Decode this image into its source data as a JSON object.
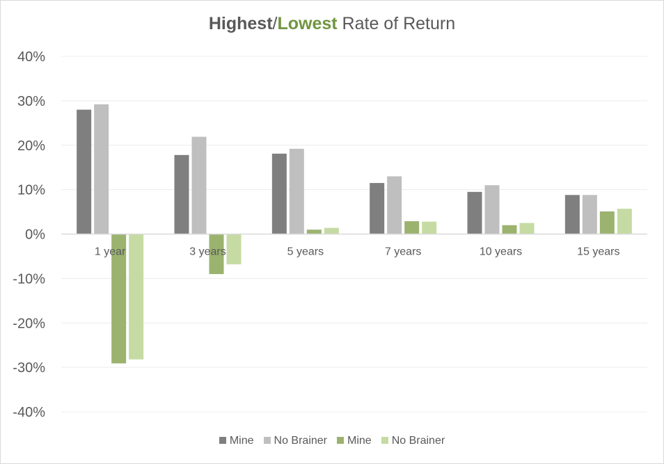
{
  "chart_data": {
    "type": "bar",
    "title": "Highest/Lowest Rate of Return",
    "title_parts": {
      "highest": "Highest",
      "slash": "/",
      "lowest": "Lowest",
      "rest": " Rate of Return"
    },
    "categories": [
      "1 year",
      "3 years",
      "5 years",
      "7 years",
      "10 years",
      "15 years"
    ],
    "series": [
      {
        "name": "Mine",
        "group": "highest",
        "color": "#7f7f7f",
        "values": [
          28,
          17.8,
          18.1,
          11.5,
          9.5,
          8.8
        ]
      },
      {
        "name": "No Brainer",
        "group": "highest",
        "color": "#bfbfbf",
        "values": [
          29.2,
          21.9,
          19.2,
          13,
          11,
          8.8
        ]
      },
      {
        "name": "Mine",
        "group": "lowest",
        "color": "#9bb36f",
        "values": [
          -29.1,
          -9,
          1,
          2.9,
          2,
          5.1
        ]
      },
      {
        "name": "No Brainer",
        "group": "lowest",
        "color": "#c5dba3",
        "values": [
          -28.2,
          -6.8,
          1.4,
          2.8,
          2.5,
          5.7
        ]
      }
    ],
    "ylim": [
      -40,
      40
    ],
    "yticks": [
      40,
      30,
      20,
      10,
      0,
      -10,
      -20,
      -30,
      -40
    ],
    "ytick_labels": [
      "40%",
      "30%",
      "20%",
      "10%",
      "0%",
      "-10%",
      "-20%",
      "-30%",
      "-40%"
    ],
    "xlabel": "",
    "ylabel": "",
    "grid": true,
    "legend_position": "bottom"
  }
}
